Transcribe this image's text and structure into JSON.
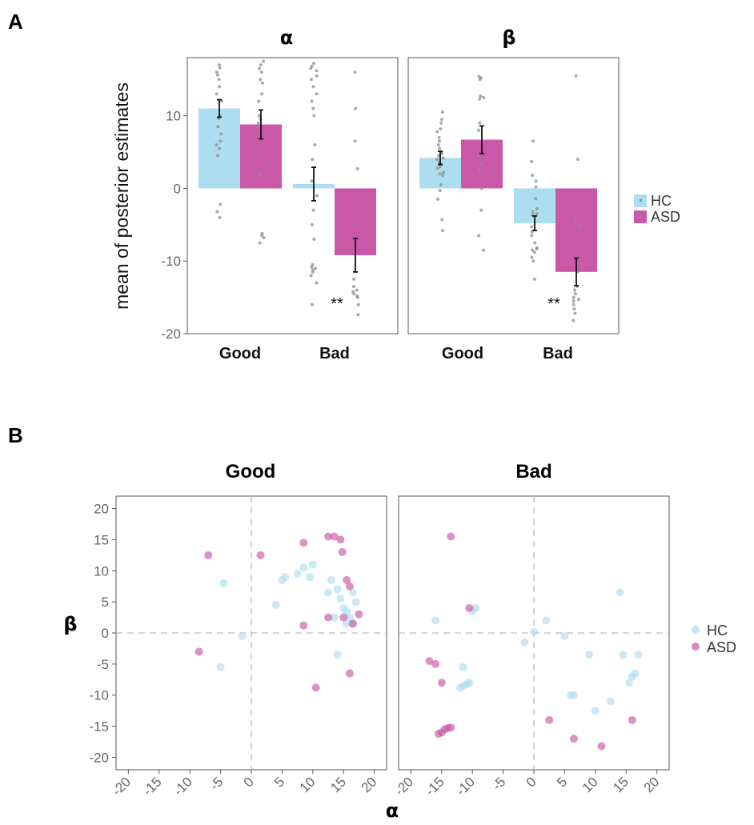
{
  "panel_labels": {
    "a": "A",
    "b": "B"
  },
  "colors": {
    "hc": "#ADDDF0",
    "asd": "#C958A8",
    "jitter": "#8E8E8E",
    "error": "#111111"
  },
  "legend": {
    "hc": "HC",
    "asd": "ASD"
  },
  "chart_data": [
    {
      "type": "bar",
      "panel": "A",
      "ylabel": "mean of posterior estimates",
      "ylim": [
        -20,
        18
      ],
      "yticks": [
        -20,
        -10,
        0,
        10
      ],
      "categories": [
        "Good",
        "Bad"
      ],
      "legend_position": "right",
      "facets": [
        {
          "title": "α",
          "series": [
            {
              "name": "HC",
              "values": [
                11.0,
                0.6
              ],
              "errors": [
                1.2,
                2.3
              ]
            },
            {
              "name": "ASD",
              "values": [
                8.8,
                -9.2
              ],
              "errors": [
                2.0,
                2.3
              ]
            }
          ],
          "significance": [
            {
              "category": "Bad",
              "label": "**"
            }
          ],
          "points": {
            "HC_Good": [
              17,
              16.6,
              16,
              15.6,
              15,
              14,
              13,
              12,
              10,
              9.6,
              8.5,
              7.5,
              6.5,
              6,
              5.5,
              4.5,
              -2.2,
              -3.2,
              -4
            ],
            "ASD_Good": [
              17.5,
              17,
              16.5,
              16,
              15,
              14.5,
              13,
              12,
              10,
              9.5,
              9,
              8.5,
              2,
              -6.2,
              -6.5,
              -6.8,
              -7.5
            ],
            "HC_Bad": [
              17.2,
              16.8,
              16.5,
              16.2,
              15.5,
              15,
              14,
              13,
              12,
              11,
              10,
              6,
              4,
              1,
              -1,
              -3,
              -5,
              -7,
              -10.5,
              -10.8,
              -11,
              -11.2,
              -11.5,
              -12,
              -13,
              -16
            ],
            "ASD_Bad": [
              16,
              11,
              6.5,
              2.7,
              -7,
              -8,
              -12.5,
              -13.5,
              -14,
              -14.2,
              -14.5,
              -14.8,
              -15,
              -16,
              -17.4
            ]
          }
        },
        {
          "title": "β",
          "series": [
            {
              "name": "HC",
              "values": [
                4.2,
                -4.8
              ],
              "errors": [
                0.9,
                1.0
              ]
            },
            {
              "name": "ASD",
              "values": [
                6.7,
                -11.5
              ],
              "errors": [
                1.9,
                1.9
              ]
            }
          ],
          "significance": [
            {
              "category": "Bad",
              "label": "**"
            }
          ],
          "points": {
            "HC_Good": [
              10.5,
              9.5,
              9,
              8.2,
              7.8,
              7,
              6.5,
              6,
              5.5,
              5,
              4.8,
              4.5,
              4.2,
              4,
              3.6,
              3.3,
              3,
              2.8,
              2.2,
              2,
              1.8,
              0.5,
              -0.3,
              -1.5,
              -4.3,
              -5.8
            ],
            "ASD_Good": [
              15.4,
              15.2,
              15,
              12.7,
              12.5,
              12.3,
              9,
              8,
              6.5,
              4.5,
              3.5,
              2.5,
              0,
              -3,
              -6.5,
              -8.5
            ],
            "HC_Bad": [
              6.5,
              3.7,
              1.8,
              1,
              0.2,
              -1.4,
              -2.8,
              -3.2,
              -3.5,
              -3.7,
              -5.3,
              -6,
              -6.5,
              -7.5,
              -8.2,
              -8.3,
              -8.5,
              -8.8,
              -9.5,
              -10,
              -12.5
            ],
            "ASD_Bad": [
              15.5,
              4,
              -4.5,
              -5,
              -11.5,
              -13.5,
              -14,
              -14.5,
              -15,
              -15.3,
              -15.5,
              -16,
              -16.6,
              -17.2,
              -18.2
            ]
          }
        }
      ]
    },
    {
      "type": "scatter",
      "panel": "B",
      "xlabel": "α",
      "ylabel": "β",
      "xlim": [
        -22,
        22
      ],
      "ylim": [
        -22,
        22
      ],
      "xticks": [
        -20,
        -15,
        -10,
        -5,
        0,
        5,
        10,
        15,
        20
      ],
      "yticks": [
        -20,
        -15,
        -10,
        -5,
        0,
        5,
        10,
        15,
        20
      ],
      "legend_position": "right",
      "facets": [
        {
          "title": "Good",
          "series": [
            {
              "name": "HC",
              "points": [
                [
                  -4.5,
                  8
                ],
                [
                  -1.5,
                  -0.5
                ],
                [
                  -5,
                  -5.5
                ],
                [
                  4,
                  4.5
                ],
                [
                  5,
                  8.5
                ],
                [
                  5.5,
                  9
                ],
                [
                  7.5,
                  9.5
                ],
                [
                  8.5,
                  10.5
                ],
                [
                  9.5,
                  9
                ],
                [
                  10,
                  11
                ],
                [
                  12.5,
                  6.5
                ],
                [
                  13,
                  8.5
                ],
                [
                  14,
                  7
                ],
                [
                  14.5,
                  5.5
                ],
                [
                  15,
                  4
                ],
                [
                  15.5,
                  3.5
                ],
                [
                  15.5,
                  1.5
                ],
                [
                  16,
                  2.5
                ],
                [
                  16.5,
                  6.5
                ],
                [
                  16.5,
                  1.5
                ],
                [
                  17,
                  5
                ],
                [
                  13.5,
                  2.5
                ],
                [
                  14,
                  -3.5
                ]
              ]
            },
            {
              "name": "ASD",
              "points": [
                [
                  -7,
                  12.5
                ],
                [
                  -8.5,
                  -3
                ],
                [
                  1.5,
                  12.5
                ],
                [
                  8.5,
                  14.5
                ],
                [
                  8.5,
                  1.2
                ],
                [
                  10.5,
                  -8.8
                ],
                [
                  12.5,
                  15.5
                ],
                [
                  13.5,
                  15.5
                ],
                [
                  14.5,
                  15
                ],
                [
                  14.8,
                  13
                ],
                [
                  15.5,
                  8.5
                ],
                [
                  16,
                  7.5
                ],
                [
                  15,
                  2.5
                ],
                [
                  12.5,
                  2.5
                ],
                [
                  17.5,
                  3
                ],
                [
                  16,
                  -6.5
                ],
                [
                  16.5,
                  1.5
                ]
              ]
            }
          ]
        },
        {
          "title": "Bad",
          "series": [
            {
              "name": "HC",
              "points": [
                [
                  -16,
                  2
                ],
                [
                  -10,
                  3.5
                ],
                [
                  -9.5,
                  4
                ],
                [
                  -11.5,
                  -5.5
                ],
                [
                  -11.5,
                  -8.5
                ],
                [
                  -12,
                  -8.8
                ],
                [
                  -11,
                  -8.3
                ],
                [
                  -10.5,
                  -8
                ],
                [
                  -1.5,
                  -1.5
                ],
                [
                  0,
                  0.2
                ],
                [
                  2,
                  2
                ],
                [
                  5,
                  -0.5
                ],
                [
                  6,
                  -10
                ],
                [
                  6.5,
                  -10
                ],
                [
                  9,
                  -3.5
                ],
                [
                  10,
                  -12.5
                ],
                [
                  12.5,
                  -11
                ],
                [
                  14,
                  6.5
                ],
                [
                  14.5,
                  -3.5
                ],
                [
                  15.5,
                  -8
                ],
                [
                  16,
                  -7
                ],
                [
                  16.5,
                  -6.5
                ],
                [
                  17,
                  -3.5
                ]
              ]
            },
            {
              "name": "ASD",
              "points": [
                [
                  -13.5,
                  15.5
                ],
                [
                  -10.5,
                  4
                ],
                [
                  -16,
                  -5
                ],
                [
                  -17,
                  -4.5
                ],
                [
                  -15,
                  -8
                ],
                [
                  -15.5,
                  -16.2
                ],
                [
                  -15,
                  -16
                ],
                [
                  -14.5,
                  -15.5
                ],
                [
                  -14,
                  -15.3
                ],
                [
                  -13.5,
                  -15.2
                ],
                [
                  2.5,
                  -14
                ],
                [
                  6.5,
                  -17
                ],
                [
                  11,
                  -18.2
                ],
                [
                  16,
                  -14
                ]
              ]
            }
          ]
        }
      ]
    }
  ]
}
